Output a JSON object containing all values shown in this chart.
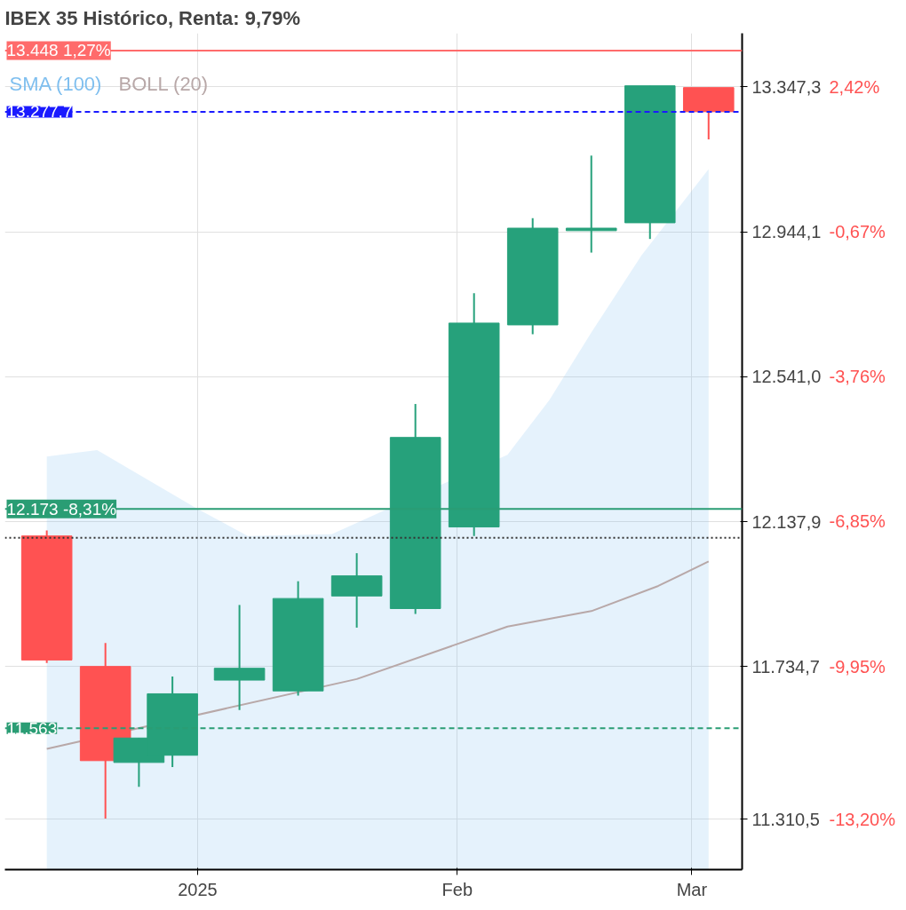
{
  "chart_data": {
    "type": "candlestick",
    "title": "IBEX 35 Histórico, Renta: 9,79%",
    "x": [
      "2024-12-14",
      "2024-12-21",
      "2024-12-25",
      "2024-12-29",
      "2025-01-06",
      "2025-01-13",
      "2025-01-20",
      "2025-01-27",
      "2025-02-03",
      "2025-02-10",
      "2025-02-17",
      "2025-02-24",
      "2025-03-03"
    ],
    "ohlc": [
      [
        12098,
        12113,
        11745,
        11753
      ],
      [
        11735,
        11800,
        11312,
        11473
      ],
      [
        11468,
        11536,
        11400,
        11536
      ],
      [
        11488,
        11707,
        11455,
        11659
      ],
      [
        11697,
        11906,
        11614,
        11730
      ],
      [
        11667,
        11972,
        11654,
        11924
      ],
      [
        11931,
        12050,
        11843,
        11987
      ],
      [
        11896,
        12465,
        11881,
        12372
      ],
      [
        12123,
        12773,
        12098,
        12690
      ],
      [
        12685,
        12982,
        12659,
        12954
      ],
      [
        12947,
        13156,
        12886,
        12954
      ],
      [
        12969,
        13350,
        12924,
        13350
      ],
      [
        13345,
        13345,
        13201,
        13278
      ]
    ],
    "colors": [
      "#ff5252",
      "#ff5252",
      "#26a17b",
      "#26a17b",
      "#26a17b",
      "#26a17b",
      "#26a17b",
      "#26a17b",
      "#26a17b",
      "#26a17b",
      "#26a17b",
      "#26a17b",
      "#ff5252"
    ],
    "series": [
      {
        "name": "SMA (100)",
        "type": "area",
        "color": "#7fbfef",
        "x": [
          "2024-12-14",
          "2024-12-20",
          "2025-01-01",
          "2025-01-07",
          "2025-01-17",
          "2025-02-07",
          "2025-02-12",
          "2025-02-17",
          "2025-02-23",
          "2025-03-03"
        ],
        "values": [
          12319,
          12337,
          12173,
          12098,
          12103,
          12324,
          12476,
          12664,
          12879,
          13118
        ]
      },
      {
        "name": "BOLL (20)",
        "type": "line",
        "color": "#b8a8a8",
        "x": [
          "2024-12-14",
          "2025-01-20",
          "2025-02-07",
          "2025-02-17",
          "2025-02-25",
          "2025-03-03"
        ],
        "values": [
          11506,
          11700,
          11846,
          11889,
          11959,
          12027
        ]
      }
    ],
    "xlim": [
      "2024-12-09",
      "2025-03-07"
    ],
    "xticks": [
      {
        "value": "2025-01-01",
        "label": "2025"
      },
      {
        "value": "2025-02-01",
        "label": "Feb"
      },
      {
        "value": "2025-03-01",
        "label": "Mar"
      }
    ],
    "ylim": [
      11170,
      13496
    ],
    "yticks": [
      {
        "value": 11310.5,
        "label": "11.310,5"
      },
      {
        "value": 11734.7,
        "label": "11.734,7"
      },
      {
        "value": 12137.9,
        "label": "12.137,9"
      },
      {
        "value": 12541.0,
        "label": "12.541,0"
      },
      {
        "value": 12944.1,
        "label": "12.944,1"
      },
      {
        "value": 13347.3,
        "label": "13.347,3"
      }
    ],
    "y2ticks": [
      {
        "value": -13.2,
        "label": "-13,20%"
      },
      {
        "value": -9.95,
        "label": "-9,95%"
      },
      {
        "value": -6.85,
        "label": "-6,85%"
      },
      {
        "value": -3.76,
        "label": "-3,76%"
      },
      {
        "value": -0.67,
        "label": "-0,67%"
      },
      {
        "value": 2.42,
        "label": "2,42%"
      }
    ],
    "y2lim": [
      -14.28,
      3.57
    ],
    "ref_lines": [
      {
        "axis": "y",
        "value": 13448,
        "label": "13.448 1,27%",
        "color": "#ff6b6b",
        "line_style": "solid"
      },
      {
        "axis": "y",
        "value": 13277.7,
        "label": "13.277,7",
        "color": "#1a1aff",
        "line_style": "dashed"
      },
      {
        "axis": "y",
        "value": 12173,
        "label": "12.173 -8,31%",
        "color": "#2a9d74",
        "line_style": "solid"
      },
      {
        "axis": "y",
        "value": 12093,
        "color": "#333333",
        "line_style": "dotted"
      },
      {
        "axis": "y",
        "value": 11563,
        "label": "11.563",
        "color": "#2a9d74",
        "line_style": "dashed"
      }
    ],
    "grid": true,
    "legend": "top left"
  }
}
